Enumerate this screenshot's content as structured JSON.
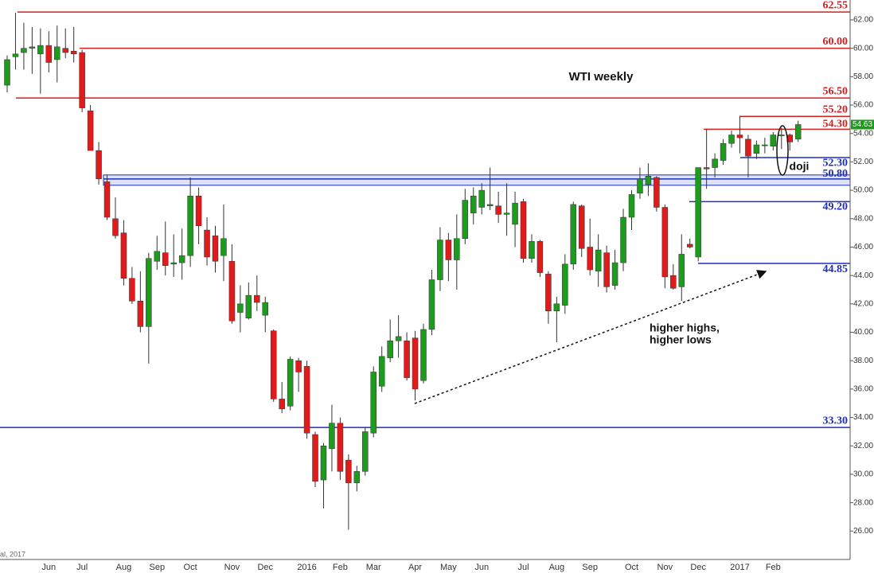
{
  "chart_data": {
    "type": "candlestick",
    "title": "WTI weekly",
    "annotations": [
      "doji",
      "higher highs,",
      "higher lows"
    ],
    "source": "al, 2017",
    "up_color": "#1e9a1e",
    "down_color": "#e01b1b",
    "categories": [
      null,
      null,
      null,
      null,
      null,
      "Jun",
      null,
      null,
      null,
      "Jul",
      null,
      null,
      null,
      null,
      "Aug",
      null,
      null,
      null,
      "Sep",
      null,
      null,
      null,
      "Oct",
      null,
      null,
      null,
      null,
      "Nov",
      null,
      null,
      null,
      "Dec",
      null,
      null,
      null,
      null,
      "2016",
      null,
      null,
      null,
      "Feb",
      null,
      null,
      null,
      "Mar",
      null,
      null,
      null,
      null,
      "Apr",
      null,
      null,
      null,
      "May",
      null,
      null,
      null,
      "Jun",
      null,
      null,
      null,
      null,
      "Jul",
      null,
      null,
      null,
      "Aug",
      null,
      null,
      null,
      "Sep",
      null,
      null,
      null,
      null,
      "Oct",
      null,
      null,
      null,
      "Nov",
      null,
      null,
      null,
      "Dec",
      null,
      null,
      null,
      null,
      "2017",
      null,
      null,
      null,
      "Feb",
      null,
      null,
      null
    ],
    "open": [
      57.4,
      59.4,
      59.7,
      60.0,
      59.6,
      60.2,
      59.2,
      60.0,
      59.8,
      59.7,
      55.6,
      52.8,
      50.6,
      48.0,
      47.0,
      43.8,
      42.2,
      40.4,
      45.0,
      45.6,
      44.8,
      44.9,
      45.4,
      49.6,
      47.2,
      46.8,
      45.4,
      45.0,
      41.4,
      41.0,
      42.6,
      41.2,
      40.1,
      35.3,
      34.8,
      38.0,
      37.6,
      32.8,
      29.6,
      31.8,
      33.6,
      31.0,
      29.4,
      30.2,
      32.9,
      36.2,
      38.2,
      39.4,
      39.4,
      39.6,
      36.6,
      40.2,
      43.7,
      46.5,
      45.1,
      46.6,
      48.4,
      48.8,
      48.9,
      48.9,
      48.3,
      47.6,
      49.2,
      45.2,
      46.4,
      44.1,
      41.5,
      41.9,
      44.8,
      48.9,
      46.0,
      44.3,
      45.6,
      43.3,
      44.9,
      48.1,
      49.8,
      50.4,
      50.9,
      48.8,
      44.0,
      43.2,
      46.2,
      45.3,
      51.6,
      51.6,
      52.1,
      53.3,
      53.9,
      53.6,
      52.6,
      53.2,
      53.1,
      53.9,
      53.9,
      53.6
    ],
    "high": [
      59.5,
      62.5,
      61.8,
      61.5,
      61.4,
      61.2,
      61.6,
      61.4,
      61.5,
      59.9,
      56.0,
      53.4,
      51.1,
      49.5,
      47.9,
      44.6,
      44.3,
      45.6,
      46.8,
      47.8,
      46.9,
      47.3,
      50.9,
      50.2,
      48.1,
      47.5,
      49.0,
      46.2,
      43.3,
      43.5,
      44.0,
      42.5,
      40.2,
      36.5,
      38.3,
      38.2,
      38.0,
      33.0,
      32.2,
      34.9,
      34.0,
      31.4,
      30.6,
      33.3,
      37.6,
      39.0,
      40.9,
      41.2,
      40.0,
      40.1,
      40.6,
      44.4,
      47.4,
      47.0,
      48.3,
      50.1,
      50.2,
      50.5,
      51.6,
      49.9,
      50.5,
      49.9,
      49.4,
      46.9,
      46.5,
      44.3,
      42.5,
      45.5,
      49.2,
      49.0,
      48.0,
      46.9,
      46.1,
      45.8,
      48.7,
      50.0,
      51.6,
      51.9,
      51.0,
      49.0,
      44.8,
      46.9,
      46.6,
      51.6,
      54.3,
      52.6,
      53.6,
      54.2,
      55.2,
      53.9,
      53.5,
      53.7,
      54.1,
      54.4,
      54.0,
      54.9
    ],
    "low": [
      56.9,
      58.5,
      58.5,
      58.2,
      56.8,
      58.3,
      57.6,
      59.3,
      59.0,
      55.5,
      52.8,
      50.4,
      47.9,
      46.6,
      43.3,
      42.0,
      40.0,
      37.8,
      44.4,
      44.0,
      43.9,
      43.7,
      44.6,
      46.2,
      44.7,
      44.2,
      43.6,
      40.6,
      40.0,
      40.9,
      41.5,
      40.0,
      35.1,
      34.3,
      34.5,
      35.8,
      32.5,
      29.1,
      27.6,
      30.2,
      29.6,
      26.1,
      28.8,
      29.9,
      32.6,
      35.8,
      37.9,
      38.2,
      36.6,
      35.2,
      36.4,
      39.8,
      42.9,
      43.6,
      43.0,
      46.2,
      47.6,
      48.3,
      48.6,
      47.7,
      46.8,
      46.0,
      44.9,
      44.9,
      43.9,
      40.6,
      39.3,
      41.3,
      44.4,
      45.3,
      44.0,
      43.2,
      42.8,
      43.0,
      44.3,
      47.2,
      49.4,
      49.6,
      48.5,
      43.1,
      43.0,
      42.2,
      45.9,
      45.0,
      50.1,
      50.9,
      51.8,
      53.0,
      52.6,
      50.9,
      52.2,
      52.6,
      52.8,
      52.9,
      52.8,
      53.4
    ],
    "close": [
      59.2,
      59.6,
      60.0,
      60.1,
      60.2,
      59.0,
      60.1,
      59.7,
      59.6,
      55.8,
      52.8,
      50.8,
      48.1,
      46.8,
      43.8,
      42.2,
      40.4,
      45.2,
      45.7,
      44.7,
      44.9,
      45.4,
      49.6,
      47.5,
      45.3,
      45.0,
      46.6,
      40.8,
      42.0,
      42.6,
      42.1,
      42.1,
      35.3,
      34.6,
      38.1,
      37.2,
      32.9,
      29.5,
      32.0,
      33.6,
      30.2,
      29.4,
      30.2,
      33.0,
      37.2,
      38.3,
      39.4,
      39.7,
      36.8,
      36.0,
      40.2,
      43.7,
      46.5,
      45.1,
      46.6,
      49.3,
      49.6,
      50.0,
      49.0,
      48.3,
      48.4,
      49.1,
      45.2,
      46.4,
      44.2,
      41.5,
      42.0,
      44.8,
      49.0,
      45.9,
      44.4,
      45.8,
      43.2,
      44.9,
      48.1,
      49.7,
      50.8,
      51.0,
      48.8,
      43.9,
      43.1,
      45.5,
      46.0,
      51.6,
      51.5,
      52.2,
      53.3,
      53.9,
      53.7,
      52.4,
      53.2,
      53.2,
      53.9,
      53.9,
      53.4,
      54.63
    ],
    "levels": [
      {
        "value": 62.55,
        "color": "#d42020"
      },
      {
        "value": 60,
        "label": "60.00",
        "color": "#d42020"
      },
      {
        "value": 56.5,
        "label": "56.50",
        "color": "#d42020"
      },
      {
        "value": 55.2,
        "label": "55.20",
        "color": "#d42020"
      },
      {
        "value": 54.3,
        "label": "54.30",
        "color": "#d42020"
      },
      {
        "value": 52.3,
        "label": "52.30",
        "color": "#1f2fbf"
      },
      {
        "value": 50.8,
        "label": "50.80",
        "color": "#1f2fbf"
      },
      {
        "value": 49.2,
        "label": "49.20",
        "color": "#1f2fbf"
      },
      {
        "value": 44.85,
        "color": "#1f2fbf"
      },
      {
        "value": 33.3,
        "label": "33.30",
        "color": "#1f2fbf"
      }
    ],
    "ylim": [
      24.0,
      63.4
    ],
    "yticks": [
      {
        "value": 26,
        "label": "26.00"
      },
      {
        "value": 28,
        "label": "28.00"
      },
      {
        "value": 30,
        "label": "30.00"
      },
      {
        "value": 32,
        "label": "32.00"
      },
      {
        "value": 34,
        "label": "34.00"
      },
      {
        "value": 36,
        "label": "36.00"
      },
      {
        "value": 38,
        "label": "38.00"
      },
      {
        "value": 40,
        "label": "40.00"
      },
      {
        "value": 42,
        "label": "42.00"
      },
      {
        "value": 44,
        "label": "44.00"
      },
      {
        "value": 46,
        "label": "46.00"
      },
      {
        "value": 48,
        "label": "48.00"
      },
      {
        "value": 50,
        "label": "50.00"
      },
      {
        "value": 52,
        "label": "52.00"
      },
      {
        "value": 54,
        "label": "54.00"
      },
      {
        "value": 56,
        "label": "56.00"
      },
      {
        "value": 58,
        "label": "58.00"
      },
      {
        "value": 60,
        "label": "60.00"
      },
      {
        "value": 62,
        "label": "62.00"
      }
    ]
  }
}
